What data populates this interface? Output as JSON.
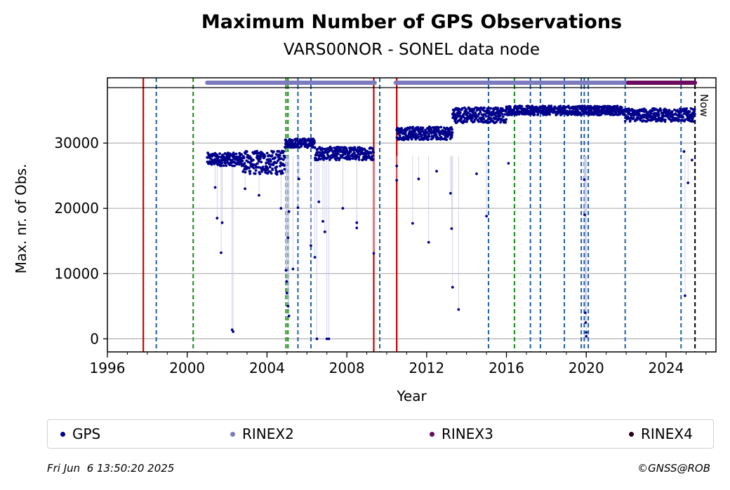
{
  "chart_data": {
    "type": "scatter",
    "title": "Maximum Number of GPS Observations",
    "subtitle": "VARS00NOR - SONEL data node",
    "xlabel": "Year",
    "ylabel": "Max. nr. of Obs.",
    "xlim": [
      1996,
      2026.5
    ],
    "ylim": [
      -2000,
      38500
    ],
    "xticks": [
      1996,
      2000,
      2004,
      2008,
      2012,
      2016,
      2020,
      2024
    ],
    "yticks": [
      0,
      10000,
      20000,
      30000
    ],
    "grid": "horizontal",
    "now_label": "Now",
    "now_x": 2025.45,
    "colors": {
      "gps": "#00008b",
      "rinex2": "#7b7bbd",
      "rinex3": "#6a0b5f",
      "rinex4": "#2a0018",
      "red_line": "#cc0000",
      "blue_dashed": "#1f5fa8",
      "green_dashed": "#138a13"
    },
    "vertical_lines": {
      "red_solid": [
        1997.8,
        2009.35,
        2010.5
      ],
      "blue_dashed": [
        1998.45,
        2005.55,
        2006.2,
        2009.65,
        2015.1,
        2017.2,
        2017.7,
        2018.9,
        2019.75,
        2019.9,
        2020.1,
        2021.95,
        2024.75
      ],
      "green_dashed": [
        2000.3,
        2004.95,
        2005.05,
        2009.35,
        2016.4
      ]
    },
    "rinex_bars": [
      {
        "name": "RINEX2",
        "start": 2001.0,
        "end": 2009.4
      },
      {
        "name": "RINEX2",
        "start": 2010.45,
        "end": 2022.1
      },
      {
        "name": "RINEX3",
        "start": 2022.1,
        "end": 2025.45
      }
    ],
    "gps_segments": [
      {
        "start": 2001.0,
        "end": 2002.8,
        "base": 27500,
        "spread": 1000
      },
      {
        "start": 2002.8,
        "end": 2004.9,
        "base": 27000,
        "spread": 1800
      },
      {
        "start": 2004.9,
        "end": 2006.4,
        "base": 30000,
        "spread": 700
      },
      {
        "start": 2006.4,
        "end": 2009.35,
        "base": 28400,
        "spread": 1000
      },
      {
        "start": 2010.5,
        "end": 2013.3,
        "base": 31500,
        "spread": 1000
      },
      {
        "start": 2013.3,
        "end": 2016.0,
        "base": 34300,
        "spread": 1200
      },
      {
        "start": 2016.0,
        "end": 2021.95,
        "base": 35000,
        "spread": 700
      },
      {
        "start": 2021.95,
        "end": 2025.45,
        "base": 34300,
        "spread": 1000
      }
    ],
    "gps_outliers": [
      [
        2001.4,
        23200
      ],
      [
        2001.5,
        18500
      ],
      [
        2001.75,
        17800
      ],
      [
        2001.7,
        13200
      ],
      [
        2002.25,
        1400
      ],
      [
        2002.3,
        1100
      ],
      [
        2002.9,
        23000
      ],
      [
        2003.6,
        22000
      ],
      [
        2004.7,
        20000
      ],
      [
        2004.95,
        10500
      ],
      [
        2004.98,
        8800
      ],
      [
        2005.0,
        7000
      ],
      [
        2005.05,
        5000
      ],
      [
        2005.1,
        3500
      ],
      [
        2005.05,
        15500
      ],
      [
        2005.1,
        19500
      ],
      [
        2005.3,
        10700
      ],
      [
        2005.55,
        20100
      ],
      [
        2005.6,
        24500
      ],
      [
        2006.2,
        14300
      ],
      [
        2006.4,
        12500
      ],
      [
        2006.5,
        0
      ],
      [
        2006.6,
        21000
      ],
      [
        2006.8,
        18000
      ],
      [
        2006.9,
        16400
      ],
      [
        2007.0,
        0
      ],
      [
        2007.1,
        0
      ],
      [
        2007.8,
        20000
      ],
      [
        2008.5,
        17800
      ],
      [
        2008.5,
        17000
      ],
      [
        2009.35,
        13100
      ],
      [
        2010.5,
        26500
      ],
      [
        2010.5,
        24300
      ],
      [
        2011.3,
        17700
      ],
      [
        2011.6,
        24500
      ],
      [
        2012.1,
        14800
      ],
      [
        2012.5,
        25700
      ],
      [
        2013.2,
        22300
      ],
      [
        2013.25,
        16900
      ],
      [
        2013.3,
        7900
      ],
      [
        2013.6,
        4500
      ],
      [
        2014.5,
        25300
      ],
      [
        2015.0,
        18800
      ],
      [
        2016.1,
        26900
      ],
      [
        2019.9,
        24400
      ],
      [
        2019.92,
        19000
      ],
      [
        2019.95,
        4000
      ],
      [
        2019.97,
        2500
      ],
      [
        2020.0,
        1000
      ],
      [
        2020.0,
        400
      ],
      [
        2024.9,
        28700
      ],
      [
        2024.95,
        6600
      ],
      [
        2025.1,
        23900
      ],
      [
        2025.3,
        27400
      ]
    ],
    "legend": [
      {
        "name": "GPS",
        "color": "#00008b"
      },
      {
        "name": "RINEX2",
        "color": "#7b7bbd"
      },
      {
        "name": "RINEX3",
        "color": "#6a0b5f"
      },
      {
        "name": "RINEX4",
        "color": "#2a0018"
      }
    ],
    "legend_placement": "bottom"
  },
  "footer": {
    "timestamp": "Fri Jun  6 13:50:20 2025",
    "copyright": "©GNSS@ROB"
  }
}
